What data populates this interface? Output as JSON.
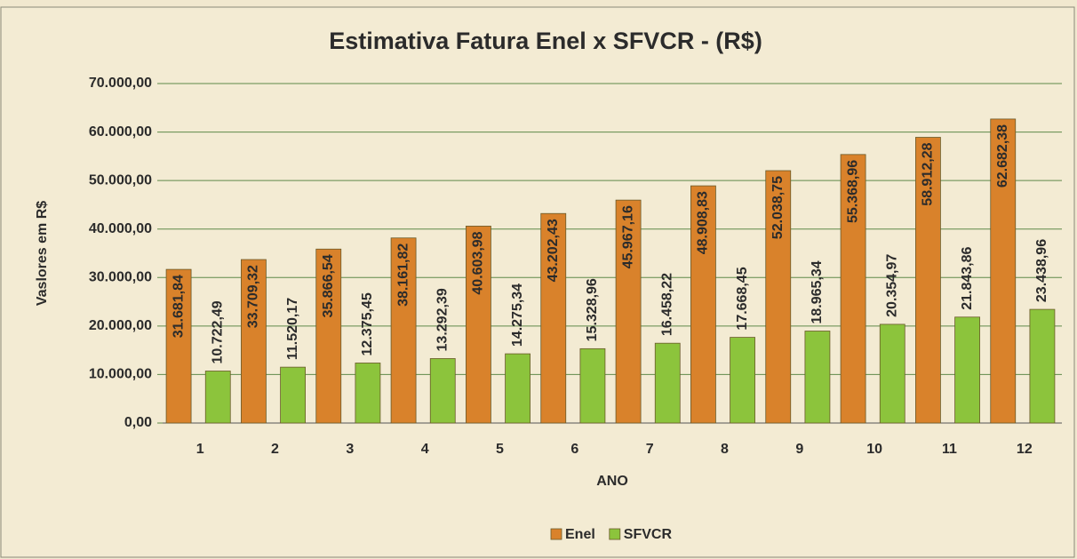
{
  "chart_data": {
    "type": "bar",
    "title": "Estimativa Fatura Enel x SFVCR - (R$)",
    "y_label": "Vaslores em R$",
    "x_label": "ANO",
    "categories": [
      "1",
      "2",
      "3",
      "4",
      "5",
      "6",
      "7",
      "8",
      "9",
      "10",
      "11",
      "12"
    ],
    "series": [
      {
        "name": "Enel",
        "color": "#d9822b",
        "values": [
          31681.84,
          33709.32,
          35866.54,
          38161.82,
          40603.98,
          43202.43,
          45967.16,
          48908.83,
          52038.75,
          55368.96,
          58912.28,
          62682.38
        ],
        "value_labels": [
          "31.681,84",
          "33.709,32",
          "35.866,54",
          "38.161,82",
          "40.603,98",
          "43.202,43",
          "45.967,16",
          "48.908,83",
          "52.038,75",
          "55.368,96",
          "58.912,28",
          "62.682,38"
        ]
      },
      {
        "name": "SFVCR",
        "color": "#8cc43c",
        "values": [
          10722.49,
          11520.17,
          12375.45,
          13292.39,
          14275.34,
          15328.96,
          16458.22,
          17668.45,
          18965.34,
          20354.97,
          21843.86,
          23438.96
        ],
        "value_labels": [
          "10.722,49",
          "11.520,17",
          "12.375,45",
          "13.292,39",
          "14.275,34",
          "15.328,96",
          "16.458,22",
          "17.668,45",
          "18.965,34",
          "20.354,97",
          "21.843,86",
          "23.438,96"
        ]
      }
    ],
    "ylim": [
      0,
      70000
    ],
    "yticks": [
      {
        "value": 0,
        "label": "0,00"
      },
      {
        "value": 10000,
        "label": "10.000,00"
      },
      {
        "value": 20000,
        "label": "20.000,00"
      },
      {
        "value": 30000,
        "label": "30.000,00"
      },
      {
        "value": 40000,
        "label": "40.000,00"
      },
      {
        "value": 50000,
        "label": "50.000,00"
      },
      {
        "value": 60000,
        "label": "60.000,00"
      },
      {
        "value": 70000,
        "label": "70.000,00"
      }
    ],
    "grid": true,
    "legend": "bottom"
  }
}
